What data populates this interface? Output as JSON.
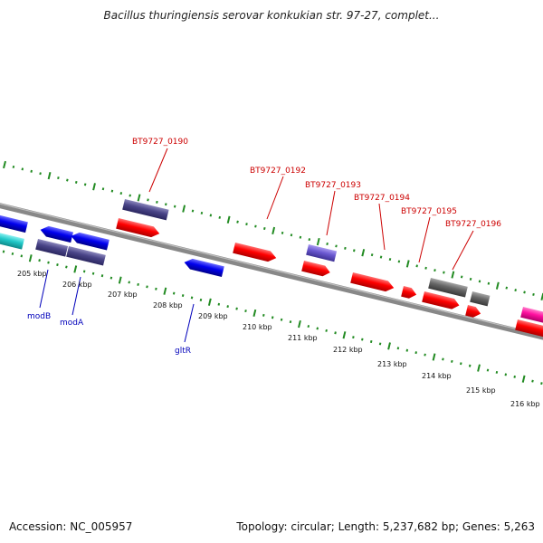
{
  "header": {
    "title": "Bacillus thuringiensis serovar konkukian str. 97-27, complet..."
  },
  "footer": {
    "accession": "Accession: NC_005957",
    "summary": "Topology: circular; Length: 5,237,682 bp; Genes: 5,263"
  },
  "scale": {
    "ticks": [
      "205 kbp",
      "206 kbp",
      "207 kbp",
      "208 kbp",
      "209 kbp",
      "210 kbp",
      "211 kbp",
      "212 kbp",
      "213 kbp",
      "214 kbp",
      "215 kbp",
      "216 kbp"
    ]
  },
  "labels": {
    "top": [
      "BT9727_0190",
      "BT9727_0192",
      "BT9727_0193",
      "BT9727_0194",
      "BT9727_0195",
      "BT9727_0196"
    ],
    "bottom": [
      "modB",
      "modA",
      "gltR"
    ]
  },
  "colors": {
    "forward_cds": "#ff0000",
    "reverse_cds": "#0000ee",
    "cyan_feature": "#20c8c8",
    "slate_feature": "#4a4588",
    "violet_feature": "#6a58d0",
    "grey_feature": "#666666",
    "magenta_feature": "#ff10a0",
    "label_red": "#cc0000",
    "label_blue": "#0000bb",
    "gc_dots": "#228b22",
    "backbone": "#888888"
  }
}
